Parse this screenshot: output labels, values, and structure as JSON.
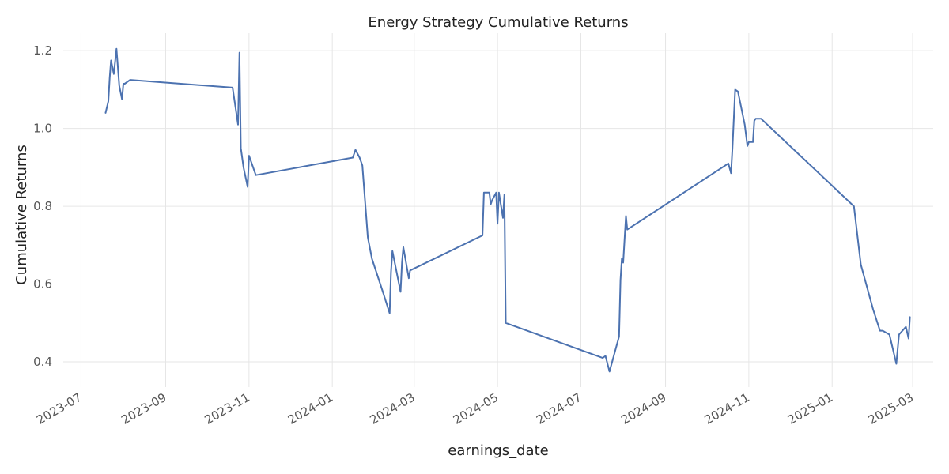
{
  "chart_data": {
    "type": "line",
    "title": "Energy Strategy Cumulative Returns",
    "xlabel": "earnings_date",
    "ylabel": "Cumulative Returns",
    "grid": true,
    "line_color": "#4c72b0",
    "grid_color": "#e6e6e6",
    "x_ticks": [
      "2023-07-01",
      "2023-09-01",
      "2023-11-01",
      "2024-01-01",
      "2024-03-01",
      "2024-05-01",
      "2024-07-01",
      "2024-09-01",
      "2024-11-01",
      "2025-01-01",
      "2025-03-01"
    ],
    "x_tick_labels": [
      "2023-07",
      "2023-09",
      "2023-11",
      "2024-01",
      "2024-03",
      "2024-05",
      "2024-07",
      "2024-09",
      "2024-11",
      "2025-01",
      "2025-03"
    ],
    "xlim": [
      "2023-06-18",
      "2025-03-16"
    ],
    "ylim": [
      0.335,
      1.245
    ],
    "y_ticks": [
      0.4,
      0.6,
      0.8,
      1.0,
      1.2
    ],
    "y_tick_labels": [
      "0.4",
      "0.6",
      "0.8",
      "1.0",
      "1.2"
    ],
    "series": [
      {
        "x": [
          "2023-07-19",
          "2023-07-21",
          "2023-07-22",
          "2023-07-23",
          "2023-07-25",
          "2023-07-27",
          "2023-07-29",
          "2023-07-31",
          "2023-08-01",
          "2023-08-02",
          "2023-08-06",
          "2023-10-20",
          "2023-10-24",
          "2023-10-25",
          "2023-10-26",
          "2023-10-28",
          "2023-10-31",
          "2023-11-01",
          "2023-11-06",
          "2024-01-16",
          "2024-01-18",
          "2024-01-21",
          "2024-01-23",
          "2024-01-27",
          "2024-01-30",
          "2024-02-07",
          "2024-02-12",
          "2024-02-13",
          "2024-02-14",
          "2024-02-20",
          "2024-02-21",
          "2024-02-22",
          "2024-02-26",
          "2024-02-27",
          "2024-04-20",
          "2024-04-21",
          "2024-04-25",
          "2024-04-26",
          "2024-04-27",
          "2024-04-30",
          "2024-05-01",
          "2024-05-02",
          "2024-05-05",
          "2024-05-06",
          "2024-05-07",
          "2024-07-17",
          "2024-07-19",
          "2024-07-22",
          "2024-07-29",
          "2024-07-30",
          "2024-07-31",
          "2024-08-01",
          "2024-08-03",
          "2024-08-04",
          "2024-10-17",
          "2024-10-19",
          "2024-10-20",
          "2024-10-22",
          "2024-10-24",
          "2024-10-29",
          "2024-10-31",
          "2024-11-01",
          "2024-11-04",
          "2024-11-05",
          "2024-11-06",
          "2024-11-10",
          "2025-01-17",
          "2025-01-22",
          "2025-01-31",
          "2025-02-05",
          "2025-02-07",
          "2025-02-12",
          "2025-02-17",
          "2025-02-19",
          "2025-02-24",
          "2025-02-26",
          "2025-02-27"
        ],
        "y": [
          1.04,
          1.07,
          1.13,
          1.175,
          1.14,
          1.205,
          1.11,
          1.075,
          1.115,
          1.115,
          1.125,
          1.105,
          1.01,
          1.195,
          0.95,
          0.9,
          0.85,
          0.93,
          0.88,
          0.925,
          0.945,
          0.925,
          0.905,
          0.72,
          0.665,
          0.58,
          0.525,
          0.63,
          0.685,
          0.58,
          0.655,
          0.695,
          0.615,
          0.635,
          0.725,
          0.835,
          0.835,
          0.805,
          0.815,
          0.835,
          0.755,
          0.835,
          0.77,
          0.83,
          0.5,
          0.41,
          0.415,
          0.375,
          0.465,
          0.61,
          0.665,
          0.655,
          0.775,
          0.74,
          0.91,
          0.885,
          0.95,
          1.1,
          1.095,
          1.01,
          0.955,
          0.965,
          0.965,
          1.02,
          1.025,
          1.025,
          0.8,
          0.65,
          0.535,
          0.48,
          0.48,
          0.47,
          0.395,
          0.47,
          0.49,
          0.46,
          0.515
        ]
      }
    ]
  }
}
